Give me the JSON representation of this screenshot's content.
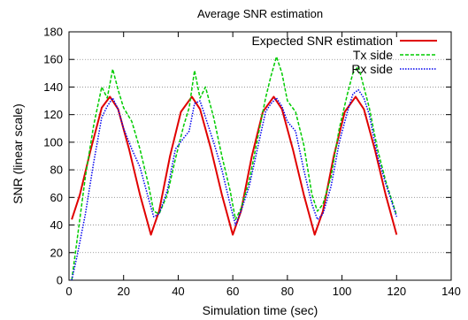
{
  "chart_data": {
    "type": "line",
    "title": "Average SNR estimation",
    "xlabel": "Simulation time (sec)",
    "ylabel": "SNR (linear scale)",
    "xlim": [
      0,
      140
    ],
    "ylim": [
      0,
      180
    ],
    "xticks": [
      0,
      20,
      40,
      60,
      80,
      100,
      120,
      140
    ],
    "yticks": [
      0,
      20,
      40,
      60,
      80,
      100,
      120,
      140,
      160,
      180
    ],
    "grid": "horizontal dotted",
    "legend_position": "top-right",
    "series": [
      {
        "name": "Expected SNR estimation",
        "color": "#e00000",
        "style": "solid",
        "x": [
          1,
          4,
          8,
          12,
          15,
          18,
          22,
          26,
          30,
          33,
          37,
          41,
          45,
          48,
          52,
          56,
          60,
          63,
          67,
          71,
          75,
          78,
          82,
          86,
          90,
          93,
          97,
          101,
          105,
          108,
          112,
          116,
          120
        ],
        "y": [
          44,
          62,
          95,
          125,
          133,
          124,
          95,
          62,
          33,
          50,
          90,
          122,
          133,
          124,
          95,
          62,
          33,
          50,
          90,
          122,
          133,
          124,
          95,
          62,
          33,
          50,
          90,
          122,
          133,
          124,
          95,
          62,
          33
        ]
      },
      {
        "name": "Tx side",
        "color": "#00cc00",
        "style": "dashed",
        "x": [
          1,
          3,
          6,
          9,
          12,
          14,
          16,
          18,
          20,
          23,
          26,
          29,
          31,
          33,
          36,
          39,
          42,
          44,
          46,
          48,
          50,
          53,
          56,
          59,
          61,
          63,
          66,
          69,
          72,
          74,
          76,
          78,
          80,
          83,
          86,
          89,
          91,
          93,
          96,
          99,
          102,
          104,
          106,
          108,
          110,
          113,
          116,
          120
        ],
        "y": [
          0,
          30,
          75,
          112,
          140,
          132,
          153,
          138,
          125,
          115,
          95,
          70,
          50,
          48,
          62,
          88,
          112,
          125,
          152,
          132,
          140,
          118,
          90,
          65,
          44,
          52,
          72,
          102,
          132,
          148,
          162,
          150,
          130,
          122,
          98,
          62,
          50,
          55,
          75,
          110,
          135,
          150,
          155,
          140,
          125,
          95,
          72,
          47
        ]
      },
      {
        "name": "Rx side",
        "color": "#0000ee",
        "style": "dotted",
        "x": [
          1,
          3,
          6,
          9,
          12,
          14,
          16,
          18,
          20,
          23,
          26,
          29,
          31,
          33,
          36,
          39,
          42,
          44,
          46,
          48,
          50,
          53,
          56,
          59,
          61,
          63,
          66,
          69,
          72,
          74,
          76,
          78,
          80,
          83,
          86,
          89,
          91,
          93,
          96,
          99,
          102,
          104,
          106,
          108,
          110,
          113,
          116,
          120
        ],
        "y": [
          0,
          18,
          48,
          85,
          118,
          126,
          132,
          124,
          110,
          95,
          82,
          60,
          46,
          48,
          65,
          95,
          103,
          108,
          128,
          130,
          118,
          100,
          80,
          55,
          40,
          50,
          68,
          95,
          122,
          128,
          132,
          126,
          115,
          108,
          80,
          55,
          44,
          48,
          68,
          100,
          122,
          135,
          138,
          132,
          120,
          90,
          70,
          46
        ]
      }
    ]
  }
}
